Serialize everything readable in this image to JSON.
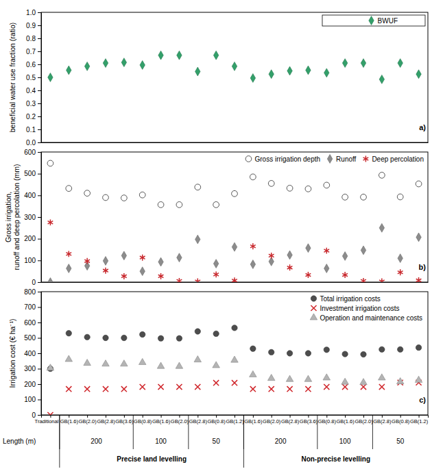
{
  "chart_data": [
    {
      "type": "scatter",
      "annotation": "a)",
      "ylabel": "beneficial water use fraction (ratio)",
      "categories": [
        "Traditional",
        "GB(1.6)",
        "GB(2.0)",
        "GB(2.8)",
        "GB(3.6)",
        "GB(0.8)",
        "GB(1.6)",
        "GB(2.0)",
        "GB(2.8)",
        "GB(0.8)",
        "GB(1.2)",
        "GB(1.6)",
        "GB(2.0)",
        "GB(2.8)",
        "GB(3.6)",
        "GB(0.8)",
        "GB(1.6)",
        "GB(2.0)",
        "GB(2.8)",
        "GB(0.8)",
        "GB(1.2)"
      ],
      "ylim": [
        0,
        1
      ],
      "yticks": [
        {
          "value": 0,
          "label": "0.0"
        },
        0.1,
        0.2,
        0.3,
        0.4,
        0.5,
        0.6,
        0.7,
        0.8,
        0.9,
        {
          "value": 1,
          "label": "1.0"
        }
      ],
      "tick_labels": "y",
      "legend": "upper right",
      "series": [
        {
          "name": "BWUF",
          "color": "#33a06a",
          "marker": "diamond",
          "values": [
            0.5,
            0.555,
            0.585,
            0.61,
            0.615,
            0.595,
            0.67,
            0.67,
            0.545,
            0.67,
            0.585,
            0.495,
            0.525,
            0.55,
            0.555,
            0.535,
            0.61,
            0.61,
            0.485,
            0.61,
            0.525
          ]
        }
      ]
    },
    {
      "type": "scatter",
      "annotation": "b)",
      "ylabel": "Gross irrigation, runoff and deep percolation (mm)",
      "categories": [
        "Traditional",
        "GB(1.6)",
        "GB(2.0)",
        "GB(2.8)",
        "GB(3.6)",
        "GB(0.8)",
        "GB(1.6)",
        "GB(2.0)",
        "GB(2.8)",
        "GB(0.8)",
        "GB(1.2)",
        "GB(1.6)",
        "GB(2.0)",
        "GB(2.8)",
        "GB(3.6)",
        "GB(0.8)",
        "GB(1.6)",
        "GB(2.0)",
        "GB(2.8)",
        "GB(0.8)",
        "GB(1.2)"
      ],
      "ylim": [
        0,
        600
      ],
      "yticks": [
        0,
        100,
        200,
        300,
        400,
        500,
        600
      ],
      "tick_labels": "y",
      "legend": "upper right",
      "series": [
        {
          "name": "Gross irrigation depth",
          "color": "#555555",
          "marker": "open-circle",
          "values": [
            548,
            432,
            410,
            390,
            388,
            402,
            357,
            357,
            438,
            357,
            408,
            485,
            455,
            433,
            430,
            447,
            392,
            392,
            493,
            393,
            453
          ]
        },
        {
          "name": "Runoff",
          "color": "#8c8c8c",
          "marker": "diamond",
          "values": [
            0,
            63,
            75,
            98,
            122,
            50,
            93,
            113,
            197,
            85,
            162,
            82,
            95,
            125,
            157,
            63,
            120,
            147,
            250,
            110,
            207
          ]
        },
        {
          "name": "Deep percolation",
          "color": "#c8282d",
          "marker": "asterisk",
          "values": [
            275,
            130,
            97,
            53,
            27,
            113,
            27,
            5,
            3,
            35,
            7,
            165,
            122,
            67,
            33,
            145,
            33,
            5,
            3,
            45,
            8
          ]
        }
      ]
    },
    {
      "type": "scatter",
      "annotation": "c)",
      "ylabel": "Irrigation cost (€ ha⁻¹)",
      "categories": [
        "Traditional",
        "GB(1.6)",
        "GB(2.0)",
        "GB(2.8)",
        "GB(3.6)",
        "GB(0.8)",
        "GB(1.6)",
        "GB(2.0)",
        "GB(2.8)",
        "GB(0.8)",
        "GB(1.2)",
        "GB(1.6)",
        "GB(2.0)",
        "GB(2.8)",
        "GB(3.6)",
        "GB(0.8)",
        "GB(1.6)",
        "GB(2.0)",
        "GB(2.8)",
        "GB(0.8)",
        "GB(1.2)"
      ],
      "ylim": [
        0,
        800
      ],
      "yticks": [
        0,
        100,
        200,
        300,
        400,
        500,
        600,
        700,
        800
      ],
      "legend": "upper right",
      "series": [
        {
          "name": "Total irrigation costs",
          "color": "#4d4d4d",
          "marker": "circle",
          "values": [
            300,
            530,
            505,
            500,
            500,
            522,
            497,
            497,
            542,
            527,
            565,
            430,
            407,
            400,
            400,
            423,
            395,
            393,
            425,
            425,
            437
          ]
        },
        {
          "name": "Investment irrigation costs",
          "color": "#d0282d",
          "marker": "x",
          "values": [
            0,
            168,
            168,
            168,
            168,
            182,
            182,
            182,
            182,
            208,
            208,
            168,
            168,
            168,
            168,
            182,
            182,
            182,
            182,
            210,
            210
          ]
        },
        {
          "name": "Operation and maintenance costs",
          "color": "#b4b4b4",
          "marker": "triangle",
          "values": [
            303,
            360,
            335,
            330,
            330,
            340,
            315,
            315,
            357,
            320,
            355,
            260,
            237,
            230,
            230,
            240,
            212,
            210,
            240,
            215,
            225
          ]
        }
      ],
      "x_groups": {
        "title": "Length (m)",
        "length": [
          null,
          200,
          200,
          200,
          200,
          100,
          100,
          100,
          50,
          50,
          50,
          200,
          200,
          200,
          200,
          100,
          100,
          100,
          50,
          50,
          50
        ],
        "levelling": [
          null,
          "Precise land levelling",
          "Precise land levelling",
          "Precise land levelling",
          "Precise land levelling",
          "Precise land levelling",
          "Precise land levelling",
          "Precise land levelling",
          "Precise land levelling",
          "Precise land levelling",
          "Precise land levelling",
          "Non-precise levelling",
          "Non-precise levelling",
          "Non-precise levelling",
          "Non-precise levelling",
          "Non-precise levelling",
          "Non-precise levelling",
          "Non-precise levelling",
          "Non-precise levelling",
          "Non-precise levelling",
          "Non-precise levelling"
        ]
      }
    }
  ]
}
